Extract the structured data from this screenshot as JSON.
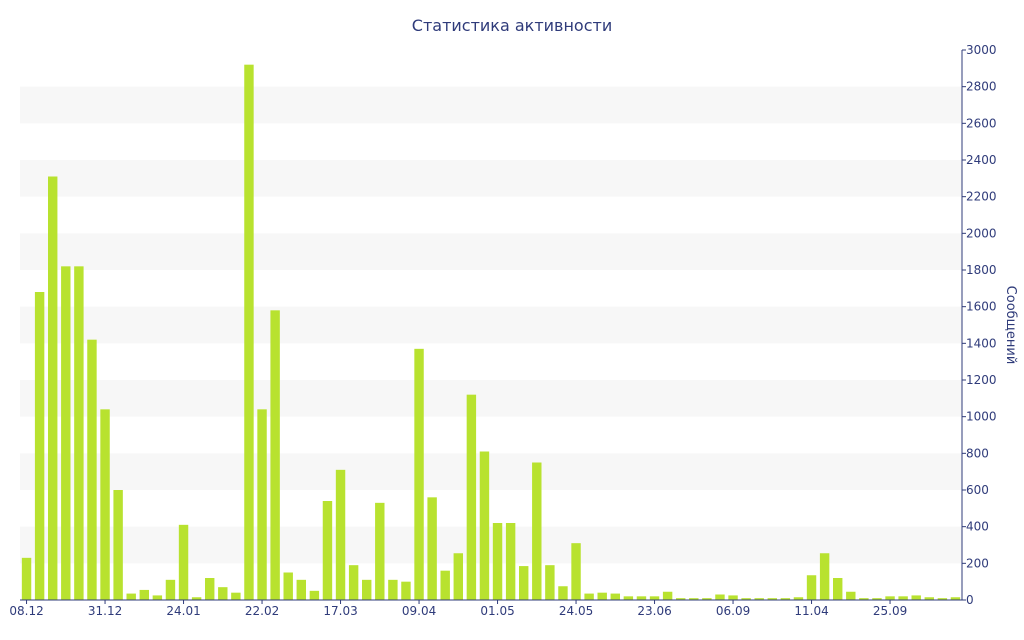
{
  "chart_data": {
    "type": "bar",
    "title": "Статистика активности",
    "ylabel": "Сообщений",
    "xlabel": "",
    "ylim": [
      0,
      3000
    ],
    "y_ticks": [
      0,
      200,
      400,
      600,
      800,
      1000,
      1200,
      1400,
      1600,
      1800,
      2000,
      2200,
      2400,
      2600,
      2800,
      3000
    ],
    "y_axis_side": "right",
    "grid": "alternating horizontal bands",
    "legend": "none",
    "bar_color": "#b8e22f",
    "axis_color": "#2f3b7a",
    "band_color": "#f7f7f7",
    "x_tick_labels": [
      {
        "index": 0,
        "label": "08.12"
      },
      {
        "index": 6,
        "label": "31.12"
      },
      {
        "index": 12,
        "label": "24.01"
      },
      {
        "index": 18,
        "label": "22.02"
      },
      {
        "index": 24,
        "label": "17.03"
      },
      {
        "index": 30,
        "label": "09.04"
      },
      {
        "index": 36,
        "label": "01.05"
      },
      {
        "index": 42,
        "label": "24.05"
      },
      {
        "index": 48,
        "label": "23.06"
      },
      {
        "index": 54,
        "label": "06.09"
      },
      {
        "index": 60,
        "label": "11.04"
      },
      {
        "index": 66,
        "label": "25.09"
      }
    ],
    "values": [
      230,
      1680,
      2310,
      1820,
      1820,
      1420,
      1040,
      600,
      35,
      55,
      25,
      110,
      410,
      15,
      120,
      70,
      40,
      2920,
      1040,
      1580,
      150,
      110,
      50,
      540,
      710,
      190,
      110,
      530,
      110,
      100,
      1370,
      560,
      160,
      255,
      1120,
      810,
      420,
      420,
      185,
      750,
      190,
      75,
      310,
      35,
      40,
      35,
      20,
      20,
      20,
      45,
      10,
      10,
      10,
      30,
      25,
      10,
      10,
      10,
      10,
      15,
      135,
      255,
      120,
      45,
      10,
      10,
      20,
      20,
      25,
      15,
      10,
      15
    ]
  }
}
